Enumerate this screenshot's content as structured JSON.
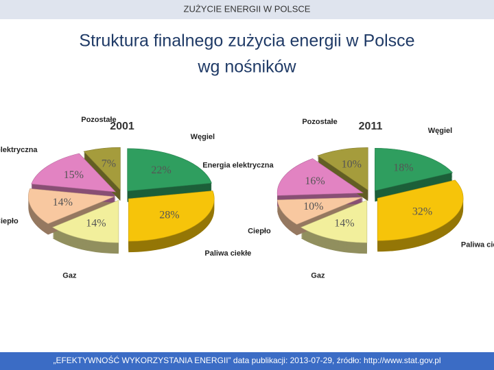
{
  "header": "ZUŻYCIE ENERGII W POLSCE",
  "title": [
    "Struktura finalnego zużycia energii w Polsce",
    "wg nośników"
  ],
  "footer": "„EFEKTYWNOŚĆ WYKORZYSTANIA ENERGII” data publikacji: 2013-07-29, źródło: http://www.stat.gov.pl",
  "chart_data": [
    {
      "type": "pie",
      "title": "2001",
      "categories": [
        "Węgiel",
        "Paliwa ciekłe",
        "Gaz",
        "Ciepło",
        "Energia elektryczna",
        "Pozostałe"
      ],
      "values": [
        22,
        28,
        14,
        14,
        15,
        7
      ],
      "value_labels": [
        "22%",
        "28%",
        "14%",
        "14%",
        "15%",
        "7%"
      ],
      "colors": [
        "#2f9e5f",
        "#f6c40a",
        "#f2ef9c",
        "#f8c8a0",
        "#e283c2",
        "#a59c3c"
      ]
    },
    {
      "type": "pie",
      "title": "2011",
      "categories": [
        "Węgiel",
        "Paliwa ciekłe",
        "Gaz",
        "Ciepło",
        "Energia elektryczna",
        "Pozostałe"
      ],
      "values": [
        18,
        32,
        14,
        10,
        16,
        10
      ],
      "value_labels": [
        "18%",
        "32%",
        "14%",
        "10%",
        "16%",
        "10%"
      ],
      "colors": [
        "#2f9e5f",
        "#f6c40a",
        "#f2ef9c",
        "#f8c8a0",
        "#e283c2",
        "#a59c3c"
      ]
    }
  ]
}
